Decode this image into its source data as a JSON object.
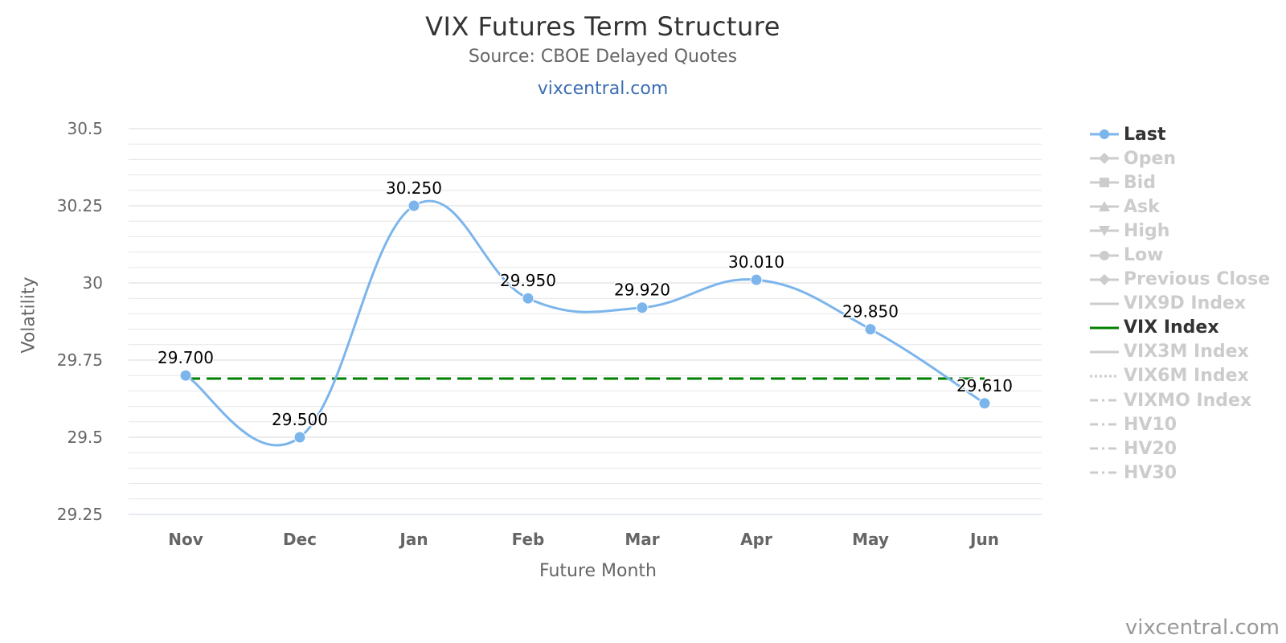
{
  "title": "VIX Futures Term Structure",
  "subtitle": "Source: CBOE Delayed Quotes",
  "site_link": "vixcentral.com",
  "credit": "vixcentral.com",
  "colors": {
    "last": "#7cb5ec",
    "vix_index": "#008000",
    "inactive": "#cccccc",
    "grid": "#e6e6e6"
  },
  "legend": [
    {
      "label": "Last",
      "active": true,
      "symbol": "circle",
      "line": "solid"
    },
    {
      "label": "Open",
      "active": false,
      "symbol": "diamond",
      "line": "solid"
    },
    {
      "label": "Bid",
      "active": false,
      "symbol": "square",
      "line": "solid"
    },
    {
      "label": "Ask",
      "active": false,
      "symbol": "triangle",
      "line": "solid"
    },
    {
      "label": "High",
      "active": false,
      "symbol": "triangle-down",
      "line": "solid"
    },
    {
      "label": "Low",
      "active": false,
      "symbol": "circle",
      "line": "solid"
    },
    {
      "label": "Previous Close",
      "active": false,
      "symbol": "diamond",
      "line": "solid"
    },
    {
      "label": "VIX9D Index",
      "active": false,
      "symbol": "none",
      "line": "solid"
    },
    {
      "label": "VIX Index",
      "active": true,
      "symbol": "none",
      "line": "solid"
    },
    {
      "label": "VIX3M Index",
      "active": false,
      "symbol": "none",
      "line": "solid"
    },
    {
      "label": "VIX6M Index",
      "active": false,
      "symbol": "none",
      "line": "dotted"
    },
    {
      "label": "VIXMO Index",
      "active": false,
      "symbol": "none",
      "line": "dashdot"
    },
    {
      "label": "HV10",
      "active": false,
      "symbol": "none",
      "line": "dashdot"
    },
    {
      "label": "HV20",
      "active": false,
      "symbol": "none",
      "line": "dashdot"
    },
    {
      "label": "HV30",
      "active": false,
      "symbol": "none",
      "line": "dashdot"
    }
  ],
  "chart_data": {
    "type": "line",
    "title": "VIX Futures Term Structure",
    "subtitle": "Source: CBOE Delayed Quotes",
    "xlabel": "Future Month",
    "ylabel": "Volatility",
    "categories": [
      "Nov",
      "Dec",
      "Jan",
      "Feb",
      "Mar",
      "Apr",
      "May",
      "Jun"
    ],
    "ylim": [
      29.25,
      30.5
    ],
    "yticks": [
      "30.5",
      "30.25",
      "30",
      "29.75",
      "29.5",
      "29.25"
    ],
    "grid": true,
    "legend_position": "right",
    "series": [
      {
        "name": "Last",
        "values": [
          29.7,
          29.5,
          30.25,
          29.95,
          29.92,
          30.01,
          29.85,
          29.61
        ],
        "labels": [
          "29.700",
          "29.500",
          "30.250",
          "29.950",
          "29.920",
          "30.010",
          "29.850",
          "29.610"
        ]
      },
      {
        "name": "VIX Index",
        "values": [
          29.69,
          29.69,
          29.69,
          29.69,
          29.69,
          29.69,
          29.69,
          29.69
        ],
        "style": "dashed"
      }
    ]
  }
}
